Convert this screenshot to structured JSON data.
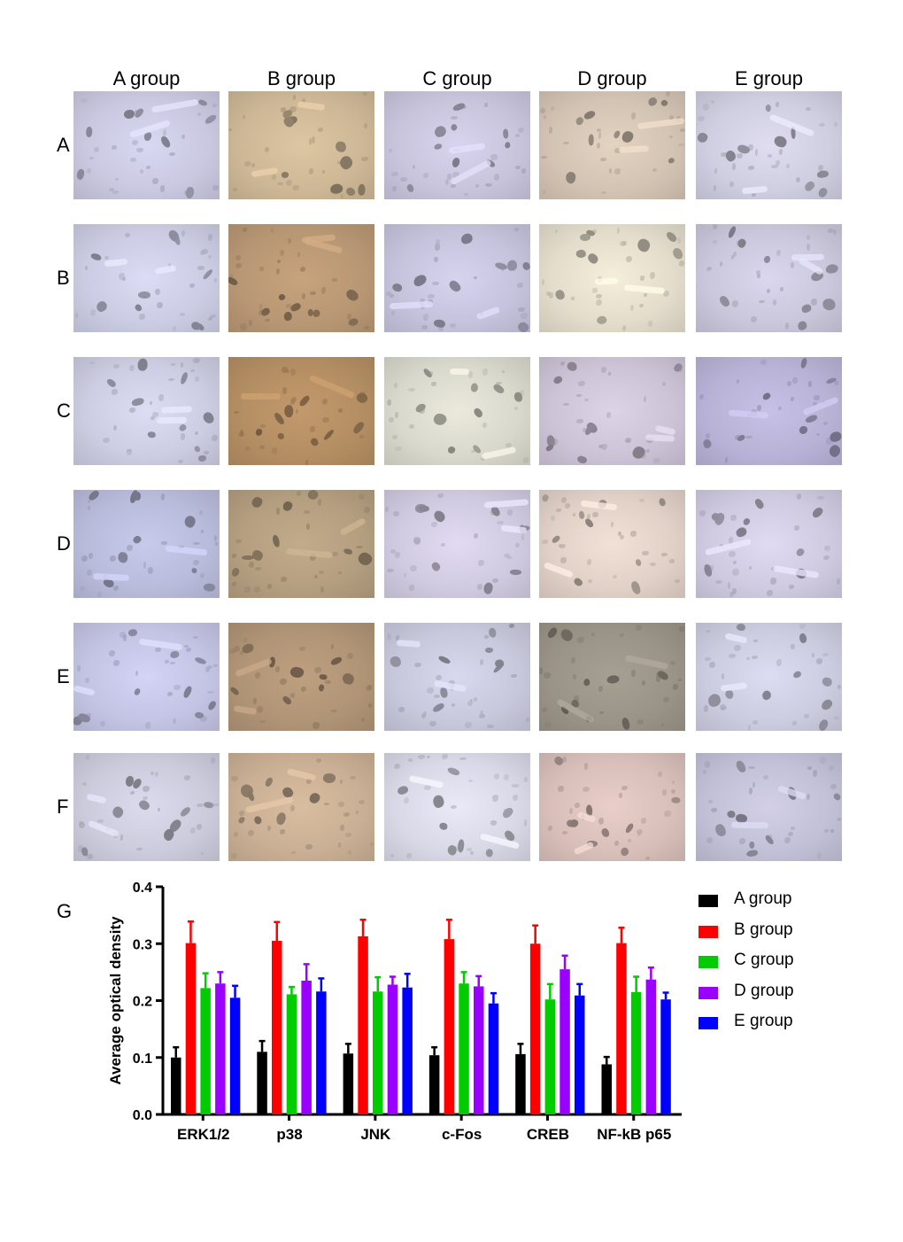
{
  "column_headers": [
    "A group",
    "B group",
    "C group",
    "D group",
    "E group"
  ],
  "row_labels": [
    "A",
    "B",
    "C",
    "D",
    "E",
    "F"
  ],
  "panel_g_label": "G",
  "tile_colors": [
    [
      "#c9c8e0",
      "#cdb796",
      "#c8c4dc",
      "#d3c3b3",
      "#cfcde0"
    ],
    [
      "#cbcce3",
      "#b89774",
      "#c5c3dc",
      "#e3dccb",
      "#cac7dc"
    ],
    [
      "#cccce2",
      "#b48e63",
      "#d9d8cc",
      "#ccc3d6",
      "#b8b2d6"
    ],
    [
      "#b9bbdb",
      "#b49e80",
      "#d0cae0",
      "#e0d0c6",
      "#cfcae0"
    ],
    [
      "#c3c4e4",
      "#b09476",
      "#c8c8dc",
      "#9a9488",
      "#cccce0"
    ],
    [
      "#cbcbdc",
      "#c9af94",
      "#d8d8e6",
      "#d8bfba",
      "#c2c0d6"
    ]
  ],
  "chart_data": {
    "type": "bar",
    "ylabel": "Average optical density",
    "xlabel": "",
    "ylim": [
      0,
      0.4
    ],
    "yticks": [
      "0.0",
      "0.1",
      "0.2",
      "0.3",
      "0.4"
    ],
    "categories": [
      "ERK1/2",
      "p38",
      "JNK",
      "c-Fos",
      "CREB",
      "NF-kB p65"
    ],
    "series": [
      {
        "name": "A group",
        "color": "#000000",
        "values": [
          0.1,
          0.11,
          0.107,
          0.104,
          0.106,
          0.088
        ],
        "errors": [
          0.018,
          0.019,
          0.017,
          0.014,
          0.018,
          0.013
        ]
      },
      {
        "name": "B group",
        "color": "#ff0000",
        "values": [
          0.301,
          0.305,
          0.313,
          0.308,
          0.3,
          0.301
        ],
        "errors": [
          0.038,
          0.033,
          0.029,
          0.034,
          0.032,
          0.027
        ]
      },
      {
        "name": "C group",
        "color": "#00cc00",
        "values": [
          0.222,
          0.211,
          0.216,
          0.23,
          0.202,
          0.215
        ],
        "errors": [
          0.026,
          0.013,
          0.025,
          0.02,
          0.027,
          0.027
        ]
      },
      {
        "name": "D group",
        "color": "#9900ff",
        "values": [
          0.23,
          0.235,
          0.228,
          0.225,
          0.255,
          0.237
        ],
        "errors": [
          0.02,
          0.029,
          0.014,
          0.018,
          0.024,
          0.021
        ]
      },
      {
        "name": "E group",
        "color": "#0000ff",
        "values": [
          0.205,
          0.216,
          0.223,
          0.195,
          0.209,
          0.202
        ],
        "errors": [
          0.021,
          0.023,
          0.024,
          0.018,
          0.02,
          0.012
        ]
      }
    ]
  }
}
